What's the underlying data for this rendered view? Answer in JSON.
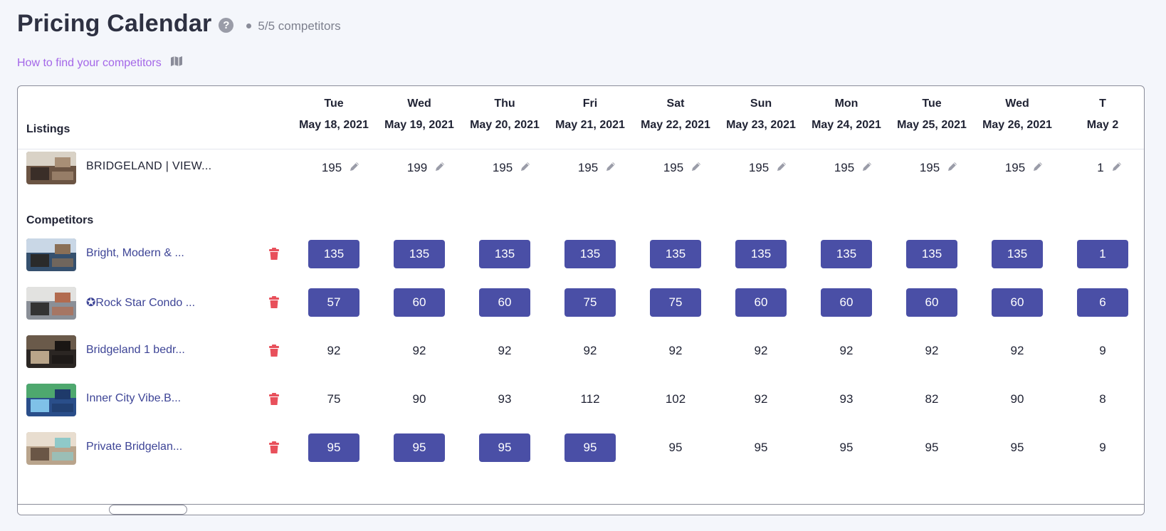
{
  "header": {
    "title": "Pricing Calendar",
    "help_icon": "?",
    "competitor_count": "5/5 competitors"
  },
  "howto": {
    "label": "How to find your competitors",
    "icon": "map-icon"
  },
  "table": {
    "listings_label": "Listings",
    "competitors_label": "Competitors",
    "columns": [
      {
        "day": "Tue",
        "date": "May 18, 2021"
      },
      {
        "day": "Wed",
        "date": "May 19, 2021"
      },
      {
        "day": "Thu",
        "date": "May 20, 2021"
      },
      {
        "day": "Fri",
        "date": "May 21, 2021"
      },
      {
        "day": "Sat",
        "date": "May 22, 2021"
      },
      {
        "day": "Sun",
        "date": "May 23, 2021"
      },
      {
        "day": "Mon",
        "date": "May 24, 2021"
      },
      {
        "day": "Tue",
        "date": "May 25, 2021"
      },
      {
        "day": "Wed",
        "date": "May 26, 2021"
      },
      {
        "day": "T",
        "date": "May 2"
      }
    ],
    "my_listing": {
      "name": "BRIDGELAND | VIEW...",
      "prices": [
        "195",
        "199",
        "195",
        "195",
        "195",
        "195",
        "195",
        "195",
        "195",
        "1"
      ]
    },
    "competitors": [
      {
        "name": "Bright, Modern & ...",
        "prices": [
          "135",
          "135",
          "135",
          "135",
          "135",
          "135",
          "135",
          "135",
          "135",
          "1"
        ],
        "highlighted": [
          true,
          true,
          true,
          true,
          true,
          true,
          true,
          true,
          true,
          true
        ]
      },
      {
        "name": "✪Rock Star Condo ...",
        "prices": [
          "57",
          "60",
          "60",
          "75",
          "75",
          "60",
          "60",
          "60",
          "60",
          "6"
        ],
        "highlighted": [
          true,
          true,
          true,
          true,
          true,
          true,
          true,
          true,
          true,
          true
        ]
      },
      {
        "name": "Bridgeland 1 bedr...",
        "prices": [
          "92",
          "92",
          "92",
          "92",
          "92",
          "92",
          "92",
          "92",
          "92",
          "9"
        ],
        "highlighted": [
          false,
          false,
          false,
          false,
          false,
          false,
          false,
          false,
          false,
          false
        ]
      },
      {
        "name": "Inner City Vibe.B...",
        "prices": [
          "75",
          "90",
          "93",
          "112",
          "102",
          "92",
          "93",
          "82",
          "90",
          "8"
        ],
        "highlighted": [
          false,
          false,
          false,
          false,
          false,
          false,
          false,
          false,
          false,
          false
        ]
      },
      {
        "name": "Private Bridgelan...",
        "prices": [
          "95",
          "95",
          "95",
          "95",
          "95",
          "95",
          "95",
          "95",
          "95",
          "9"
        ],
        "highlighted": [
          true,
          true,
          true,
          true,
          false,
          false,
          false,
          false,
          false,
          false
        ]
      }
    ]
  },
  "colors": {
    "accent": "#4a4fa6",
    "link": "#a467e8",
    "trash": "#e8505b",
    "competitor_link": "#3d4496"
  }
}
